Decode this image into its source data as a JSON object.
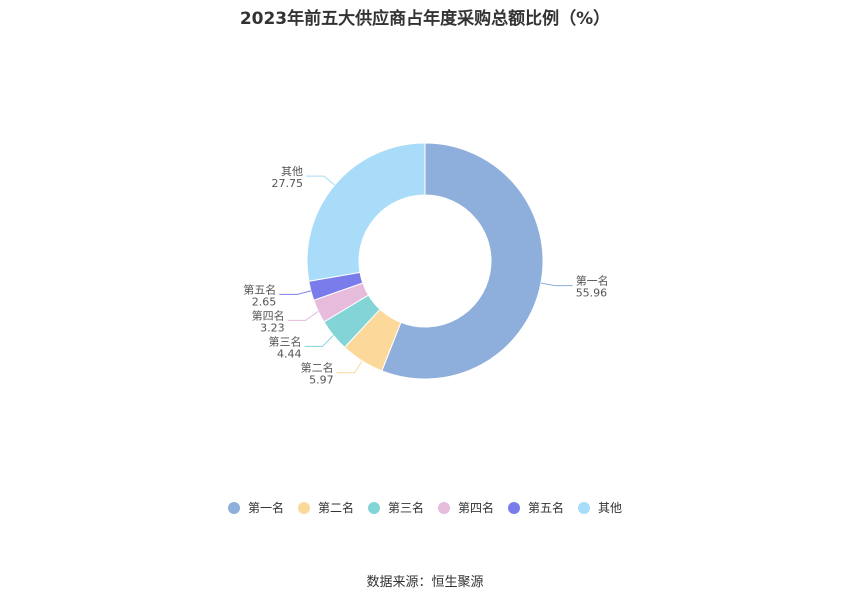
{
  "chart_data": {
    "type": "pie",
    "title": "2023年前五大供应商占年度采购总额比例（%）",
    "categories": [
      "第一名",
      "第二名",
      "第三名",
      "第四名",
      "第五名",
      "其他"
    ],
    "values": [
      55.96,
      5.97,
      4.44,
      3.23,
      2.65,
      27.75
    ],
    "value_labels": [
      "55.96",
      "5.97",
      "4.44",
      "3.23",
      "2.65",
      "27.75"
    ],
    "colors": [
      "#8eaedb",
      "#fcd99a",
      "#83d4d6",
      "#e6bbdc",
      "#7b7ceb",
      "#a8dcf8"
    ],
    "donut": true,
    "legend_position": "bottom"
  },
  "source": "数据来源：恒生聚源"
}
